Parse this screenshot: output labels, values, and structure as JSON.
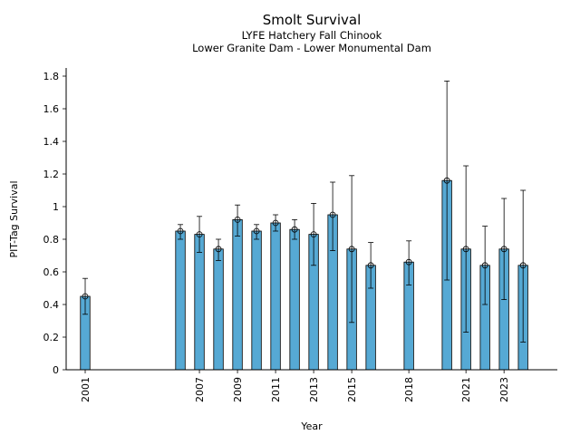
{
  "chart_data": {
    "type": "bar",
    "title": "Smolt Survival",
    "subtitle_lines": [
      "LYFE Hatchery Fall Chinook",
      "Lower Granite Dam - Lower Monumental Dam"
    ],
    "xlabel": "Year",
    "ylabel": "PIT-Tag Survival",
    "ylim": [
      0,
      1.85
    ],
    "xlim": [
      2000.0,
      2025.8
    ],
    "yticks": [
      0,
      0.2,
      0.4,
      0.6,
      0.8,
      1,
      1.2,
      1.4,
      1.6,
      1.8
    ],
    "ytick_labels": [
      "0",
      "0.2",
      "0.4",
      "0.6",
      "0.8",
      "1",
      "1.2",
      "1.4",
      "1.6",
      "1.8"
    ],
    "xtick_labels": [
      "2001",
      "2007",
      "2009",
      "2011",
      "2013",
      "2015",
      "2018",
      "2021",
      "2023"
    ],
    "grid": false,
    "bar_color": "#56a9d4",
    "edge_color": "#000000",
    "bars": [
      {
        "year": 2001,
        "value": 0.45,
        "low": 0.34,
        "high": 0.56
      },
      {
        "year": 2006,
        "value": 0.85,
        "low": 0.8,
        "high": 0.89
      },
      {
        "year": 2007,
        "value": 0.83,
        "low": 0.72,
        "high": 0.94
      },
      {
        "year": 2008,
        "value": 0.74,
        "low": 0.67,
        "high": 0.8
      },
      {
        "year": 2009,
        "value": 0.92,
        "low": 0.82,
        "high": 1.01
      },
      {
        "year": 2010,
        "value": 0.85,
        "low": 0.8,
        "high": 0.89
      },
      {
        "year": 2011,
        "value": 0.9,
        "low": 0.85,
        "high": 0.95
      },
      {
        "year": 2012,
        "value": 0.86,
        "low": 0.8,
        "high": 0.92
      },
      {
        "year": 2013,
        "value": 0.83,
        "low": 0.64,
        "high": 1.02
      },
      {
        "year": 2014,
        "value": 0.95,
        "low": 0.73,
        "high": 1.15
      },
      {
        "year": 2015,
        "value": 0.74,
        "low": 0.29,
        "high": 1.19
      },
      {
        "year": 2016,
        "value": 0.64,
        "low": 0.5,
        "high": 0.78
      },
      {
        "year": 2018,
        "value": 0.66,
        "low": 0.52,
        "high": 0.79
      },
      {
        "year": 2020,
        "value": 1.16,
        "low": 0.55,
        "high": 1.77
      },
      {
        "year": 2021,
        "value": 0.74,
        "low": 0.23,
        "high": 1.25
      },
      {
        "year": 2022,
        "value": 0.64,
        "low": 0.4,
        "high": 0.88
      },
      {
        "year": 2023,
        "value": 0.74,
        "low": 0.43,
        "high": 1.05
      },
      {
        "year": 2024,
        "value": 0.64,
        "low": 0.17,
        "high": 1.1
      }
    ]
  }
}
